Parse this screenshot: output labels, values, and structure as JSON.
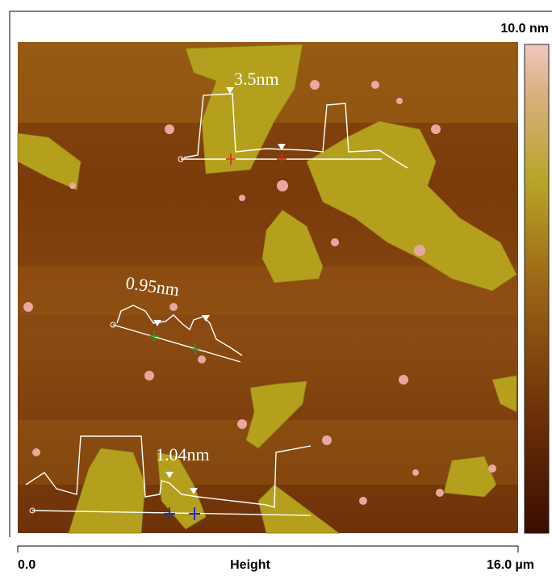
{
  "colorbar": {
    "max_label": "10.0 nm"
  },
  "scale_bar": {
    "start_label": "0.0",
    "title": "Height",
    "end_label": "16.0 µm"
  },
  "annotations": [
    {
      "label": "3.5nm"
    },
    {
      "label": "0.95nm"
    },
    {
      "label": "1.04nm"
    }
  ]
}
